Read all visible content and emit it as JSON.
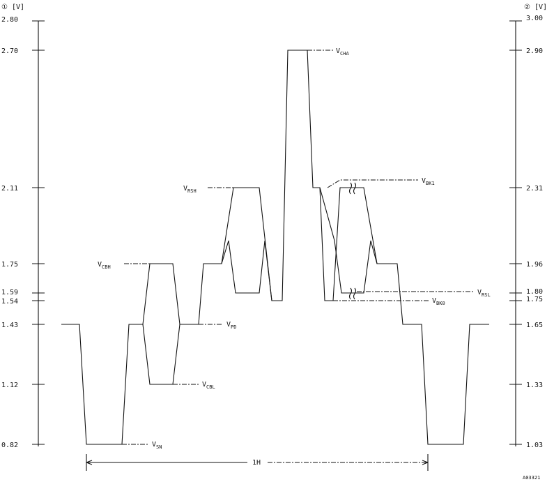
{
  "axes": {
    "left_title": "① [V]",
    "right_title": "② [V]",
    "left_ticks": [
      "2.80",
      "2.70",
      "2.11",
      "1.75",
      "1.59",
      "1.54",
      "1.43",
      "1.12",
      "0.82"
    ],
    "right_ticks": [
      "3.00",
      "2.90",
      "2.31",
      "1.96",
      "1.80",
      "1.75",
      "1.65",
      "1.33",
      "1.03"
    ]
  },
  "labels": [
    {
      "id": "vcha",
      "main": "V",
      "sub": "CHA"
    },
    {
      "id": "vbk1",
      "main": "V",
      "sub": "BK1"
    },
    {
      "id": "vrsh",
      "main": "V",
      "sub": "RSH"
    },
    {
      "id": "vcbh",
      "main": "V",
      "sub": "CBH"
    },
    {
      "id": "vrsl",
      "main": "V",
      "sub": "RSL"
    },
    {
      "id": "vbk0",
      "main": "V",
      "sub": "BK0"
    },
    {
      "id": "vpd",
      "main": "V",
      "sub": "PD"
    },
    {
      "id": "vcbl",
      "main": "V",
      "sub": "CBL"
    },
    {
      "id": "vsn",
      "main": "V",
      "sub": "SN"
    }
  ],
  "period_label": "1H",
  "figure_id": "A03321"
}
